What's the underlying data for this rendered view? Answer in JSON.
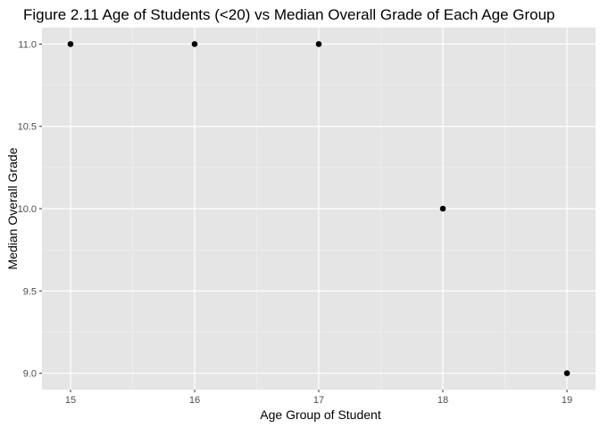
{
  "chart_data": {
    "type": "scatter",
    "title": "Figure 2.11 Age of Students (<20) vs Median Overall Grade of Each Age Group",
    "xlabel": "Age Group of Student",
    "ylabel": "Median Overall Grade",
    "x": [
      15,
      16,
      17,
      18,
      19
    ],
    "y": [
      11.0,
      11.0,
      11.0,
      10.0,
      9.0
    ],
    "xlim": [
      14.77,
      19.23
    ],
    "ylim": [
      8.9,
      11.1
    ],
    "x_ticks": [
      "15",
      "16",
      "17",
      "18",
      "19"
    ],
    "y_ticks": [
      "9.0",
      "9.5",
      "10.0",
      "10.5",
      "11.0"
    ],
    "grid": true,
    "colors": {
      "panel_background": "#e5e5e5",
      "grid_major": "#ffffff",
      "grid_minor": "#f2f2f2",
      "point": "#000000",
      "tick_label": "#4d4d4d"
    }
  }
}
